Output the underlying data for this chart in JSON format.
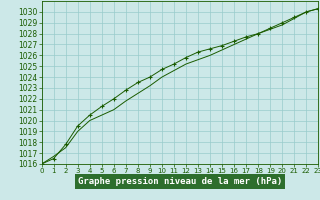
{
  "title": "Graphe pression niveau de la mer (hPa)",
  "x_values": [
    0,
    1,
    2,
    3,
    4,
    5,
    6,
    7,
    8,
    9,
    10,
    11,
    12,
    13,
    14,
    15,
    16,
    17,
    18,
    19,
    20,
    21,
    22,
    23
  ],
  "line1": [
    1016.0,
    1016.7,
    1017.5,
    1019.0,
    1020.0,
    1020.5,
    1021.0,
    1021.8,
    1022.5,
    1023.2,
    1024.0,
    1024.6,
    1025.2,
    1025.6,
    1026.0,
    1026.5,
    1027.0,
    1027.5,
    1028.0,
    1028.4,
    1028.8,
    1029.4,
    1030.0,
    1030.3
  ],
  "line2": [
    1016.0,
    1016.5,
    1017.8,
    1019.5,
    1020.5,
    1021.3,
    1022.0,
    1022.8,
    1023.5,
    1024.0,
    1024.7,
    1025.2,
    1025.8,
    1026.3,
    1026.6,
    1026.9,
    1027.3,
    1027.7,
    1028.0,
    1028.5,
    1029.0,
    1029.5,
    1030.0,
    1030.3
  ],
  "ylim_min": 1016,
  "ylim_max": 1031,
  "yticks": [
    1016,
    1017,
    1018,
    1019,
    1020,
    1021,
    1022,
    1023,
    1024,
    1025,
    1026,
    1027,
    1028,
    1029,
    1030
  ],
  "line_color": "#1a5c00",
  "bg_color": "#cce8e8",
  "grid_color": "#99cccc",
  "title_bg": "#2d6e2d",
  "title_text_color": "#ffffff",
  "tick_color": "#1a5c00",
  "tick_fontsize": 5.5,
  "xlabel_fontsize": 6.5
}
